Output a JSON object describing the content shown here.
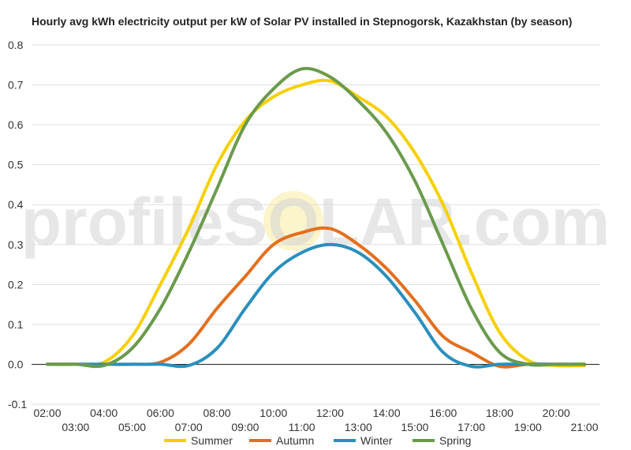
{
  "watermark": {
    "brand_text": "profileSOLAR.com"
  },
  "chart_data": {
    "type": "line",
    "title": "Hourly avg kWh electricity output per kW of Solar PV installed in Stepnogorsk, Kazakhstan (by season)",
    "xlabel": "",
    "ylabel": "",
    "ylim": [
      -0.1,
      0.8
    ],
    "yticks": [
      "-0.1",
      "0.0",
      "0.1",
      "0.2",
      "0.3",
      "0.4",
      "0.5",
      "0.6",
      "0.7",
      "0.8"
    ],
    "xticks": [
      "02:00",
      "03:00",
      "04:00",
      "05:00",
      "06:00",
      "07:00",
      "08:00",
      "09:00",
      "10:00",
      "11:00",
      "12:00",
      "13:00",
      "14:00",
      "15:00",
      "16:00",
      "17:00",
      "18:00",
      "19:00",
      "20:00",
      "21:00"
    ],
    "x": [
      2,
      3,
      4,
      5,
      6,
      7,
      8,
      9,
      10,
      11,
      12,
      13,
      14,
      15,
      16,
      17,
      18,
      19,
      20,
      21
    ],
    "grid": true,
    "legend_position": "bottom",
    "series": [
      {
        "name": "Summer",
        "color": "#f5d000",
        "values": [
          0.0,
          0.0,
          0.005,
          0.07,
          0.2,
          0.34,
          0.5,
          0.61,
          0.67,
          0.7,
          0.71,
          0.67,
          0.62,
          0.53,
          0.4,
          0.23,
          0.08,
          0.01,
          -0.003,
          -0.003
        ]
      },
      {
        "name": "Autumn",
        "color": "#e36f1e",
        "values": [
          0.0,
          0.0,
          0.0,
          0.0,
          0.005,
          0.05,
          0.14,
          0.22,
          0.3,
          0.33,
          0.34,
          0.3,
          0.24,
          0.16,
          0.07,
          0.03,
          -0.005,
          0.0,
          0.0,
          0.0
        ]
      },
      {
        "name": "Winter",
        "color": "#2a8fbd",
        "values": [
          0.0,
          0.0,
          0.0,
          0.0,
          0.0,
          -0.003,
          0.04,
          0.14,
          0.23,
          0.28,
          0.3,
          0.28,
          0.22,
          0.13,
          0.03,
          -0.005,
          0.0,
          0.0,
          0.0,
          0.0
        ]
      },
      {
        "name": "Spring",
        "color": "#6a9a4c",
        "values": [
          0.0,
          0.0,
          -0.003,
          0.04,
          0.14,
          0.28,
          0.44,
          0.6,
          0.69,
          0.74,
          0.72,
          0.66,
          0.58,
          0.46,
          0.3,
          0.14,
          0.03,
          0.0,
          0.0,
          0.0
        ]
      }
    ]
  }
}
